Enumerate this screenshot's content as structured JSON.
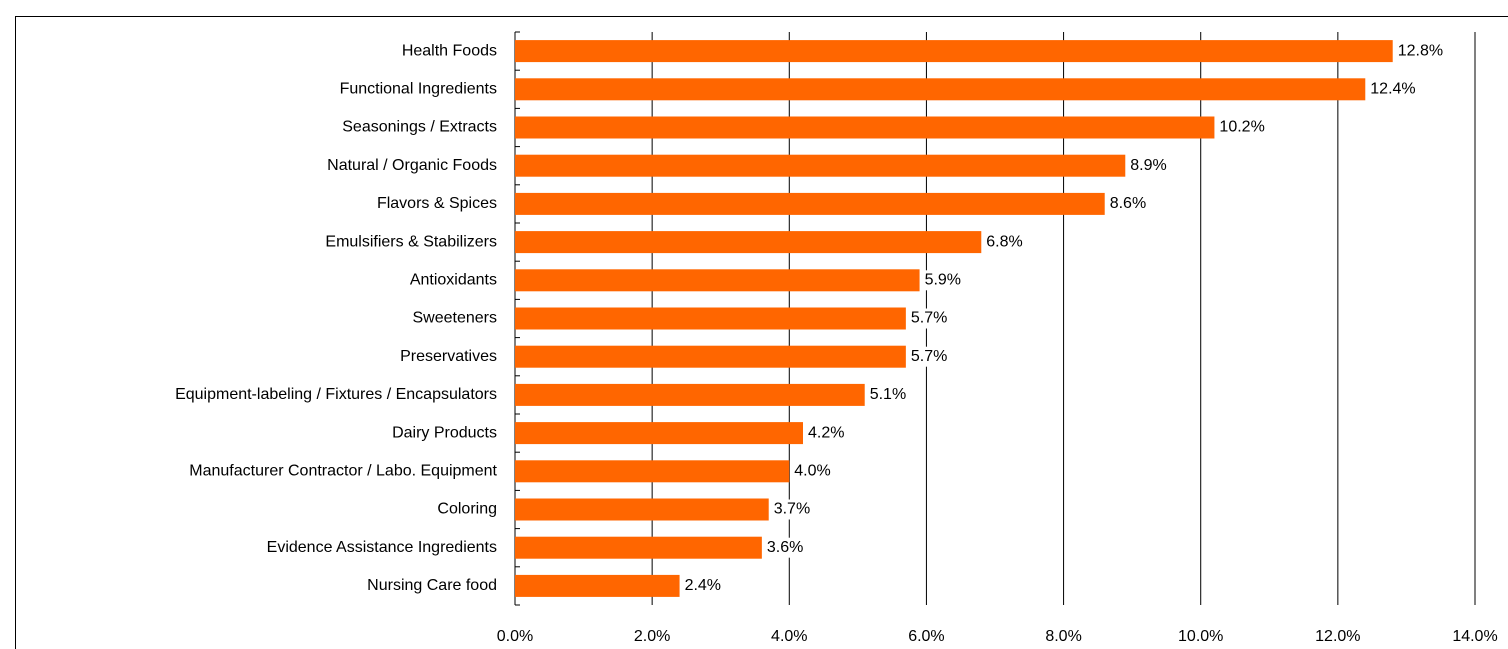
{
  "chart_data": {
    "type": "hbar",
    "categories": [
      "Health Foods",
      "Functional Ingredients",
      "Seasonings / Extracts",
      "Natural / Organic Foods",
      "Flavors & Spices",
      "Emulsifiers & Stabilizers",
      "Antioxidants",
      "Sweeteners",
      "Preservatives",
      "Equipment-labeling / Fixtures / Encapsulators",
      "Dairy Products",
      "Manufacturer Contractor / Labo. Equipment",
      "Coloring",
      "Evidence Assistance Ingredients",
      "Nursing Care food"
    ],
    "values": [
      12.8,
      12.4,
      10.2,
      8.9,
      8.6,
      6.8,
      5.9,
      5.7,
      5.7,
      5.1,
      4.2,
      4.0,
      3.7,
      3.6,
      2.4
    ],
    "value_labels": [
      "12.8%",
      "12.4%",
      "10.2%",
      "8.9%",
      "8.6%",
      "6.8%",
      "5.9%",
      "5.7%",
      "5.7%",
      "5.1%",
      "4.2%",
      "4.0%",
      "3.7%",
      "3.6%",
      "2.4%"
    ],
    "color": "#ff6600",
    "xlim": [
      0,
      14
    ],
    "xticks": [
      {
        "value": 0,
        "label": "0.0%"
      },
      {
        "value": 2,
        "label": "2.0%"
      },
      {
        "value": 4,
        "label": "4.0%"
      },
      {
        "value": 6,
        "label": "6.0%"
      },
      {
        "value": 8,
        "label": "8.0%"
      },
      {
        "value": 10,
        "label": "10.0%"
      },
      {
        "value": 12,
        "label": "12.0%"
      },
      {
        "value": 14,
        "label": "14.0%"
      }
    ],
    "grid": true
  }
}
